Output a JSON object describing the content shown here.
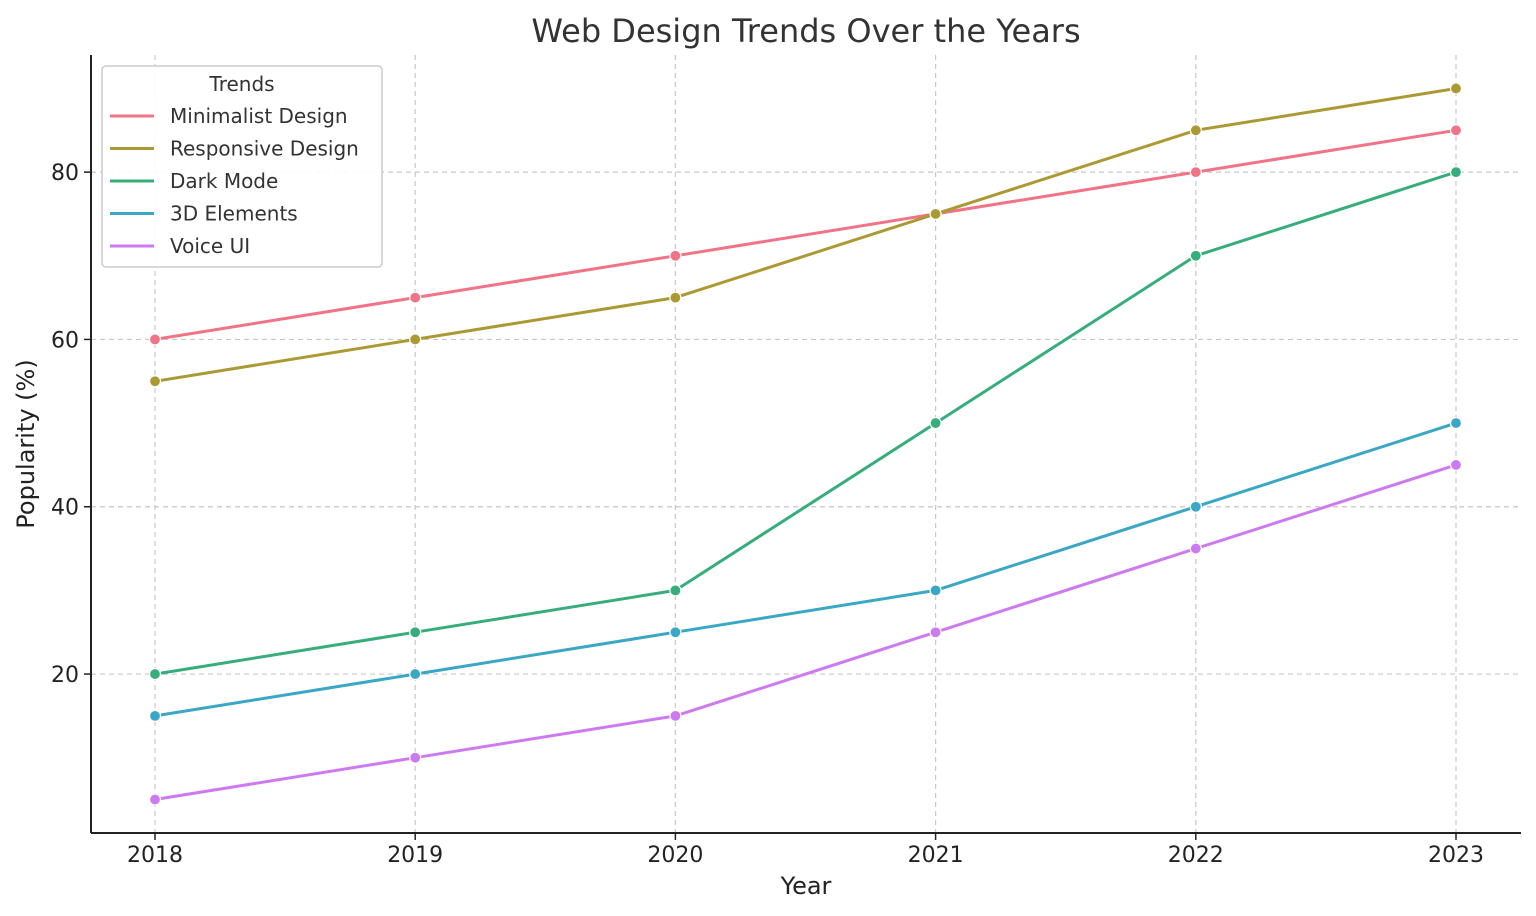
{
  "chart_data": {
    "type": "line",
    "title": "Web Design Trends Over the Years",
    "xlabel": "Year",
    "ylabel": "Popularity (%)",
    "x": [
      "2018",
      "2019",
      "2020",
      "2021",
      "2022",
      "2023"
    ],
    "ylim": [
      1,
      94
    ],
    "yticks": [
      20,
      40,
      60,
      80
    ],
    "grid": true,
    "legend": {
      "title": "Trends",
      "placement": "top-left"
    },
    "series": [
      {
        "name": "Minimalist Design",
        "color": "#f07386",
        "values": [
          60,
          65,
          70,
          75,
          80,
          85
        ]
      },
      {
        "name": "Responsive Design",
        "color": "#ab9a33",
        "values": [
          55,
          60,
          65,
          75,
          85,
          90
        ]
      },
      {
        "name": "Dark Mode",
        "color": "#36ad7b",
        "values": [
          20,
          25,
          30,
          50,
          70,
          80
        ]
      },
      {
        "name": "3D Elements",
        "color": "#3aa7c4",
        "values": [
          15,
          20,
          25,
          30,
          40,
          50
        ]
      },
      {
        "name": "Voice UI",
        "color": "#cd7af0",
        "values": [
          5,
          10,
          15,
          25,
          35,
          45
        ]
      }
    ]
  }
}
